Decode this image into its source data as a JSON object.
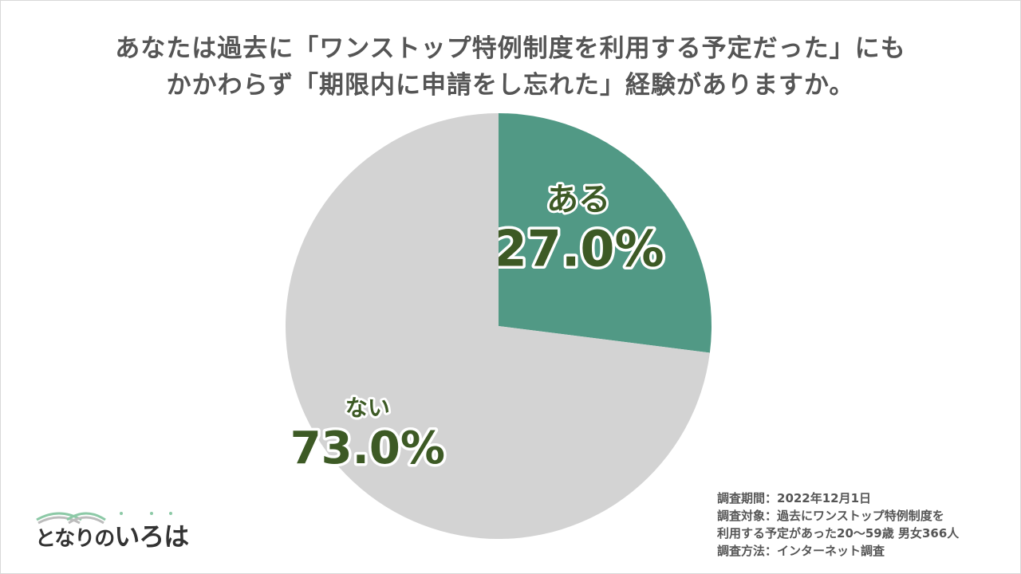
{
  "title": {
    "line1": "あなたは過去に「ワンストップ特例制度を利用する予定だった」にも",
    "line2": "かかわらず「期限内に申請をし忘れた」経験がありますか。"
  },
  "chart_data": {
    "type": "pie",
    "title": "あなたは過去に「ワンストップ特例制度を利用する予定だった」にもかかわらず「期限内に申請をし忘れた」経験がありますか。",
    "slices": [
      {
        "label": "ある",
        "value": 27.0,
        "display": "27.0%",
        "color": "#519985"
      },
      {
        "label": "ない",
        "value": 73.0,
        "display": "73.0%",
        "color": "#d3d3d3"
      }
    ],
    "start": "12 o'clock",
    "direction": "clockwise"
  },
  "note": {
    "line1": "調査期間：2022年12月1日",
    "line2": "調査対象：過去にワンストップ特例制度を",
    "line3": "利用する予定があった20〜59歳 男女366人",
    "line4": "調査方法：インターネット調査"
  },
  "logo": {
    "text_main": "となりの",
    "text_accent": "いろは"
  }
}
